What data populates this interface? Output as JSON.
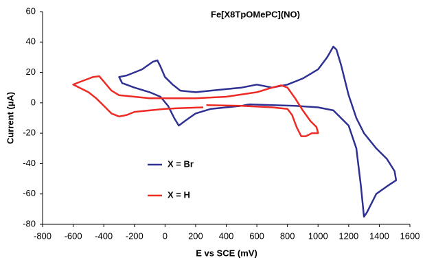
{
  "chart_data": {
    "type": "line",
    "title": "Fe[X8TpOMePC](NO)",
    "x_label": "E vs SCE (mV)",
    "y_label": "Current (µA)",
    "xlim": [
      -800,
      1600
    ],
    "xticks": [
      -800,
      -600,
      -400,
      -200,
      0,
      200,
      400,
      600,
      800,
      1000,
      1200,
      1400,
      1600
    ],
    "ylim": [
      -80,
      60
    ],
    "yticks": [
      -80,
      -60,
      -40,
      -20,
      0,
      20,
      40,
      60
    ],
    "grid": false,
    "legend": "left",
    "series": [
      {
        "name": "X = Br",
        "color": "#2e3192",
        "x": [
          550,
          700,
          850,
          1000,
          1100,
          1200,
          1250,
          1280,
          1300,
          1320,
          1380,
          1450,
          1510,
          1500,
          1450,
          1380,
          1300,
          1250,
          1200,
          1150,
          1120,
          1100,
          1060,
          1000,
          900,
          800,
          700,
          600,
          500,
          400,
          300,
          200,
          100,
          50,
          0,
          -30,
          -50,
          -80,
          -150,
          -250,
          -300,
          -280,
          -200,
          -100,
          -30,
          20,
          60,
          90,
          130,
          200,
          300,
          400,
          500,
          550
        ],
        "values": [
          -1,
          -1.5,
          -2,
          -3,
          -5,
          -15,
          -30,
          -55,
          -75,
          -72,
          -60,
          -55,
          -51,
          -45,
          -37,
          -30,
          -20,
          -10,
          5,
          25,
          35,
          37,
          30,
          22,
          16,
          12,
          10,
          12,
          10,
          9,
          8,
          7,
          8,
          12,
          17,
          24,
          28,
          27,
          22,
          18,
          17,
          13,
          10,
          7,
          4,
          -2,
          -10,
          -15,
          -12,
          -7,
          -4,
          -3,
          -2,
          -1
        ]
      },
      {
        "name": "X = H",
        "color": "#ed2a24",
        "x": [
          250,
          100,
          0,
          -100,
          -200,
          -250,
          -300,
          -350,
          -400,
          -450,
          -500,
          -600,
          -550,
          -470,
          -430,
          -400,
          -350,
          -300,
          -200,
          -100,
          0,
          200,
          400,
          600,
          700,
          760,
          800,
          850,
          900,
          950,
          990,
          1000,
          960,
          920,
          890,
          860,
          830,
          800,
          700,
          500,
          270
        ],
        "values": [
          -3,
          -3.5,
          -4,
          -5,
          -6,
          -8,
          -9,
          -7,
          -2,
          3,
          7,
          12,
          14,
          17,
          17.5,
          14,
          8,
          5,
          4,
          3,
          3,
          3,
          4,
          7,
          10,
          11.5,
          10,
          3,
          -5,
          -12,
          -16,
          -20,
          -20,
          -22,
          -22,
          -16,
          -8,
          -4,
          -3,
          -2,
          -1.5
        ]
      }
    ]
  }
}
